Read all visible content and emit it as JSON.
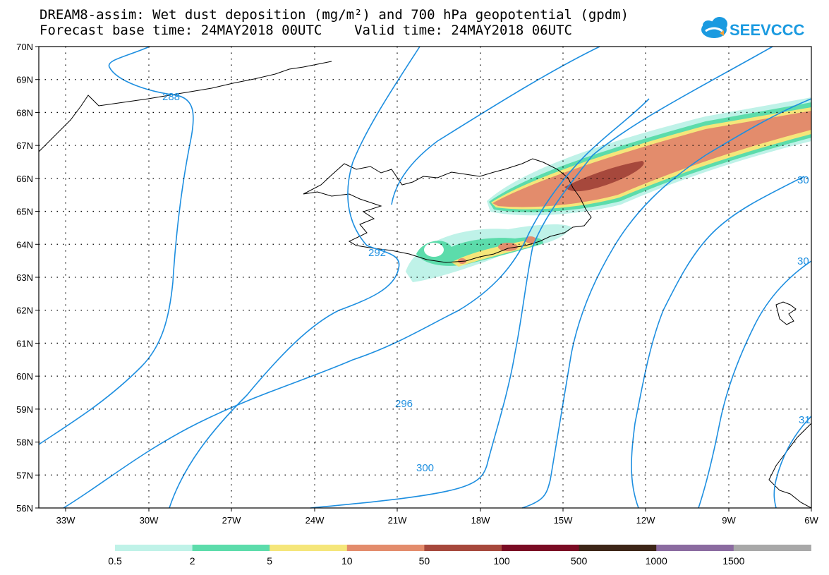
{
  "title": {
    "line1": "DREAM8-assim: Wet dust deposition (mg/m²) and 700 hPa geopotential (gpdm)",
    "line2": "Forecast base time: 24MAY2018 00UTC    Valid time: 24MAY2018 06UTC"
  },
  "logo": {
    "text": "SEEVCCC",
    "icon": "cloud-icon",
    "color": "#1a9ae0"
  },
  "axes": {
    "lon_labels": [
      "33W",
      "30W",
      "27W",
      "24W",
      "21W",
      "18W",
      "15W",
      "12W",
      "9W",
      "6W"
    ],
    "lat_labels": [
      "70N",
      "69N",
      "68N",
      "67N",
      "66N",
      "65N",
      "64N",
      "63N",
      "62N",
      "61N",
      "60N",
      "59N",
      "58N",
      "57N",
      "56N"
    ]
  },
  "contours": {
    "color": "#1e8fe0",
    "labels": [
      "288",
      "292",
      "296",
      "300",
      "30",
      "30",
      "31"
    ]
  },
  "legend": {
    "colors": [
      "#bff2e8",
      "#5cdcab",
      "#f5e67a",
      "#e38c6c",
      "#a6483c",
      "#7a0c24",
      "#3d2618",
      "#8b6ba0",
      "#a8a8a8"
    ],
    "labels": [
      "0.5",
      "2",
      "5",
      "10",
      "50",
      "100",
      "500",
      "1000",
      "1500"
    ]
  }
}
